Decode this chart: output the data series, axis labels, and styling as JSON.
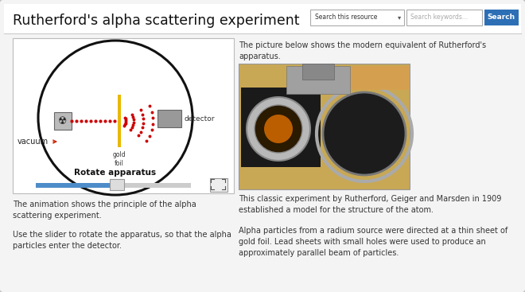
{
  "title": "Rutherford's alpha scattering experiment",
  "bg_color": "#d8d8d8",
  "panel_color": "#f4f4f4",
  "white": "#ffffff",
  "search_label": "Search this resource",
  "search_placeholder": "Search keywords...",
  "search_btn_text": "Search",
  "search_btn_color": "#2d6fb5",
  "left_text1": "The animation shows the principle of the alpha\nscattering experiment.",
  "left_text2": "Use the slider to rotate the apparatus, so that the alpha\nparticles enter the detector.",
  "right_intro": "The picture below shows the modern equivalent of Rutherford's\napparatus.",
  "right_text1": "This classic experiment by Rutherford, Geiger and Marsden in 1909\nestablished a model for the structure of the atom.",
  "right_text2": "Alpha particles from a radium source were directed at a thin sheet of\ngold foil. Lead sheets with small holes were used to produce an\napproximately parallel beam of particles.",
  "vacuum_label": "vacuum",
  "gold_foil_label": "gold\nfoil",
  "detector_label": "detector",
  "rotate_label": "Rotate apparatus",
  "circle_color": "#111111",
  "dot_color": "#cc0000",
  "foil_color": "#e8b800",
  "detector_fill": "#999999",
  "detector_edge": "#666666",
  "src_fill": "#bbbbbb",
  "src_edge": "#666666",
  "slider_blue": "#4d8cc8",
  "slider_gray": "#cccccc",
  "slider_handle": "#dddddd",
  "arrow_color": "#cc2200",
  "text_color": "#333333",
  "title_color": "#111111"
}
